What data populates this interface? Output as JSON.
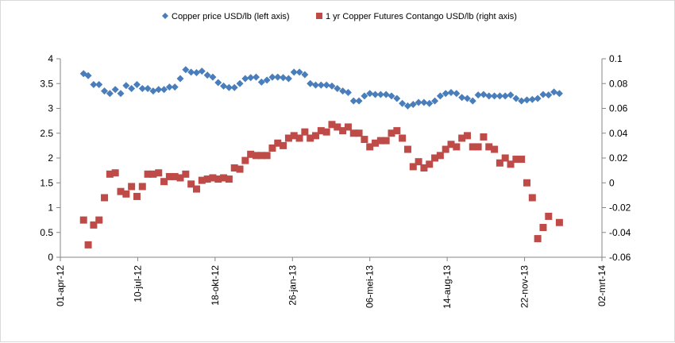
{
  "chart_data": {
    "type": "scatter",
    "title": "",
    "xlabel": "",
    "ylabel": "",
    "y2label": "",
    "x_ticks": [
      "01-apr-12",
      "10-jul-12",
      "18-okt-12",
      "26-jan-13",
      "06-mei-13",
      "14-aug-13",
      "22-nov-13",
      "02-mrt-14"
    ],
    "x_range": [
      "2012-04-01",
      "2014-03-02"
    ],
    "y_left_ticks": [
      "0",
      "0.5",
      "1",
      "1.5",
      "2",
      "2.5",
      "3",
      "3.5",
      "4"
    ],
    "y_left_range": [
      0,
      4
    ],
    "y_right_ticks": [
      "-0.06",
      "-0.04",
      "-0.02",
      "0",
      "0.02",
      "0.04",
      "0.06",
      "0.08",
      "0.1"
    ],
    "y_right_range": [
      -0.06,
      0.1
    ],
    "grid": false,
    "legend_position": "top",
    "series": [
      {
        "name": "Copper price USD/lb (left axis)",
        "axis": "left",
        "marker": "diamond",
        "color": "#4a7ebb",
        "points": [
          [
            "2012-05-01",
            3.7
          ],
          [
            "2012-05-07",
            3.66
          ],
          [
            "2012-05-14",
            3.48
          ],
          [
            "2012-05-21",
            3.48
          ],
          [
            "2012-05-28",
            3.35
          ],
          [
            "2012-06-04",
            3.3
          ],
          [
            "2012-06-11",
            3.38
          ],
          [
            "2012-06-18",
            3.3
          ],
          [
            "2012-06-25",
            3.46
          ],
          [
            "2012-07-02",
            3.4
          ],
          [
            "2012-07-09",
            3.48
          ],
          [
            "2012-07-16",
            3.4
          ],
          [
            "2012-07-23",
            3.4
          ],
          [
            "2012-07-30",
            3.35
          ],
          [
            "2012-08-06",
            3.38
          ],
          [
            "2012-08-13",
            3.38
          ],
          [
            "2012-08-20",
            3.43
          ],
          [
            "2012-08-27",
            3.43
          ],
          [
            "2012-09-03",
            3.6
          ],
          [
            "2012-09-10",
            3.78
          ],
          [
            "2012-09-17",
            3.73
          ],
          [
            "2012-09-24",
            3.72
          ],
          [
            "2012-10-01",
            3.75
          ],
          [
            "2012-10-08",
            3.67
          ],
          [
            "2012-10-15",
            3.63
          ],
          [
            "2012-10-22",
            3.52
          ],
          [
            "2012-10-29",
            3.45
          ],
          [
            "2012-11-05",
            3.42
          ],
          [
            "2012-11-12",
            3.42
          ],
          [
            "2012-11-19",
            3.5
          ],
          [
            "2012-11-26",
            3.6
          ],
          [
            "2012-12-03",
            3.62
          ],
          [
            "2012-12-10",
            3.63
          ],
          [
            "2012-12-17",
            3.53
          ],
          [
            "2012-12-24",
            3.57
          ],
          [
            "2012-12-31",
            3.63
          ],
          [
            "2013-01-07",
            3.63
          ],
          [
            "2013-01-14",
            3.62
          ],
          [
            "2013-01-21",
            3.6
          ],
          [
            "2013-01-28",
            3.73
          ],
          [
            "2013-02-04",
            3.73
          ],
          [
            "2013-02-11",
            3.68
          ],
          [
            "2013-02-18",
            3.5
          ],
          [
            "2013-02-25",
            3.47
          ],
          [
            "2013-03-04",
            3.47
          ],
          [
            "2013-03-11",
            3.47
          ],
          [
            "2013-03-18",
            3.45
          ],
          [
            "2013-03-25",
            3.4
          ],
          [
            "2013-04-01",
            3.35
          ],
          [
            "2013-04-08",
            3.32
          ],
          [
            "2013-04-15",
            3.15
          ],
          [
            "2013-04-22",
            3.15
          ],
          [
            "2013-04-29",
            3.25
          ],
          [
            "2013-05-06",
            3.3
          ],
          [
            "2013-05-13",
            3.28
          ],
          [
            "2013-05-20",
            3.28
          ],
          [
            "2013-05-27",
            3.28
          ],
          [
            "2013-06-03",
            3.25
          ],
          [
            "2013-06-10",
            3.2
          ],
          [
            "2013-06-17",
            3.1
          ],
          [
            "2013-06-24",
            3.05
          ],
          [
            "2013-07-01",
            3.08
          ],
          [
            "2013-07-08",
            3.12
          ],
          [
            "2013-07-15",
            3.12
          ],
          [
            "2013-07-22",
            3.1
          ],
          [
            "2013-07-29",
            3.15
          ],
          [
            "2013-08-05",
            3.25
          ],
          [
            "2013-08-12",
            3.3
          ],
          [
            "2013-08-19",
            3.32
          ],
          [
            "2013-08-26",
            3.3
          ],
          [
            "2013-09-02",
            3.22
          ],
          [
            "2013-09-09",
            3.2
          ],
          [
            "2013-09-16",
            3.15
          ],
          [
            "2013-09-23",
            3.27
          ],
          [
            "2013-09-30",
            3.28
          ],
          [
            "2013-10-07",
            3.25
          ],
          [
            "2013-10-14",
            3.25
          ],
          [
            "2013-10-21",
            3.25
          ],
          [
            "2013-10-28",
            3.25
          ],
          [
            "2013-11-04",
            3.27
          ],
          [
            "2013-11-11",
            3.2
          ],
          [
            "2013-11-18",
            3.15
          ],
          [
            "2013-11-25",
            3.17
          ],
          [
            "2013-12-02",
            3.18
          ],
          [
            "2013-12-09",
            3.2
          ],
          [
            "2013-12-16",
            3.28
          ],
          [
            "2013-12-23",
            3.27
          ],
          [
            "2013-12-30",
            3.33
          ],
          [
            "2014-01-06",
            3.3
          ]
        ]
      },
      {
        "name": "1 yr Copper  Futures Contango USD/lb (right axis)",
        "axis": "right",
        "marker": "square",
        "color": "#be4b48",
        "points": [
          [
            "2012-05-01",
            -0.03
          ],
          [
            "2012-05-07",
            -0.05
          ],
          [
            "2012-05-14",
            -0.034
          ],
          [
            "2012-05-21",
            -0.03
          ],
          [
            "2012-05-28",
            -0.012
          ],
          [
            "2012-06-04",
            0.007
          ],
          [
            "2012-06-11",
            0.008
          ],
          [
            "2012-06-18",
            -0.007
          ],
          [
            "2012-06-25",
            -0.009
          ],
          [
            "2012-07-02",
            -0.003
          ],
          [
            "2012-07-09",
            -0.011
          ],
          [
            "2012-07-16",
            -0.003
          ],
          [
            "2012-07-23",
            0.007
          ],
          [
            "2012-07-30",
            0.007
          ],
          [
            "2012-08-06",
            0.008
          ],
          [
            "2012-08-13",
            0.001
          ],
          [
            "2012-08-20",
            0.005
          ],
          [
            "2012-08-27",
            0.005
          ],
          [
            "2012-09-03",
            0.004
          ],
          [
            "2012-09-10",
            0.007
          ],
          [
            "2012-09-17",
            -0.001
          ],
          [
            "2012-09-24",
            -0.005
          ],
          [
            "2012-10-01",
            0.002
          ],
          [
            "2012-10-08",
            0.003
          ],
          [
            "2012-10-15",
            0.004
          ],
          [
            "2012-10-22",
            0.003
          ],
          [
            "2012-10-29",
            0.004
          ],
          [
            "2012-11-05",
            0.003
          ],
          [
            "2012-11-12",
            0.012
          ],
          [
            "2012-11-19",
            0.011
          ],
          [
            "2012-11-26",
            0.018
          ],
          [
            "2012-12-03",
            0.023
          ],
          [
            "2012-12-10",
            0.022
          ],
          [
            "2012-12-17",
            0.022
          ],
          [
            "2012-12-24",
            0.022
          ],
          [
            "2012-12-31",
            0.028
          ],
          [
            "2013-01-07",
            0.032
          ],
          [
            "2013-01-14",
            0.03
          ],
          [
            "2013-01-21",
            0.036
          ],
          [
            "2013-01-28",
            0.038
          ],
          [
            "2013-02-04",
            0.036
          ],
          [
            "2013-02-11",
            0.041
          ],
          [
            "2013-02-18",
            0.036
          ],
          [
            "2013-02-25",
            0.038
          ],
          [
            "2013-03-04",
            0.042
          ],
          [
            "2013-03-11",
            0.041
          ],
          [
            "2013-03-18",
            0.047
          ],
          [
            "2013-03-25",
            0.045
          ],
          [
            "2013-04-01",
            0.042
          ],
          [
            "2013-04-08",
            0.045
          ],
          [
            "2013-04-15",
            0.04
          ],
          [
            "2013-04-22",
            0.04
          ],
          [
            "2013-04-29",
            0.035
          ],
          [
            "2013-05-06",
            0.029
          ],
          [
            "2013-05-13",
            0.032
          ],
          [
            "2013-05-20",
            0.034
          ],
          [
            "2013-05-27",
            0.034
          ],
          [
            "2013-06-03",
            0.04
          ],
          [
            "2013-06-10",
            0.042
          ],
          [
            "2013-06-17",
            0.036
          ],
          [
            "2013-06-24",
            0.027
          ],
          [
            "2013-07-01",
            0.013
          ],
          [
            "2013-07-08",
            0.017
          ],
          [
            "2013-07-15",
            0.012
          ],
          [
            "2013-07-22",
            0.015
          ],
          [
            "2013-07-29",
            0.02
          ],
          [
            "2013-08-05",
            0.022
          ],
          [
            "2013-08-12",
            0.027
          ],
          [
            "2013-08-19",
            0.031
          ],
          [
            "2013-08-26",
            0.029
          ],
          [
            "2013-09-02",
            0.036
          ],
          [
            "2013-09-09",
            0.038
          ],
          [
            "2013-09-16",
            0.029
          ],
          [
            "2013-09-23",
            0.029
          ],
          [
            "2013-09-30",
            0.037
          ],
          [
            "2013-10-07",
            0.029
          ],
          [
            "2013-10-14",
            0.027
          ],
          [
            "2013-10-21",
            0.016
          ],
          [
            "2013-10-28",
            0.02
          ],
          [
            "2013-11-04",
            0.015
          ],
          [
            "2013-11-11",
            0.019
          ],
          [
            "2013-11-18",
            0.019
          ],
          [
            "2013-11-25",
            0
          ],
          [
            "2013-12-02",
            -0.012
          ],
          [
            "2013-12-09",
            -0.045
          ],
          [
            "2013-12-16",
            -0.036
          ],
          [
            "2013-12-23",
            -0.027
          ],
          [
            "2014-01-06",
            -0.032
          ]
        ]
      }
    ]
  }
}
